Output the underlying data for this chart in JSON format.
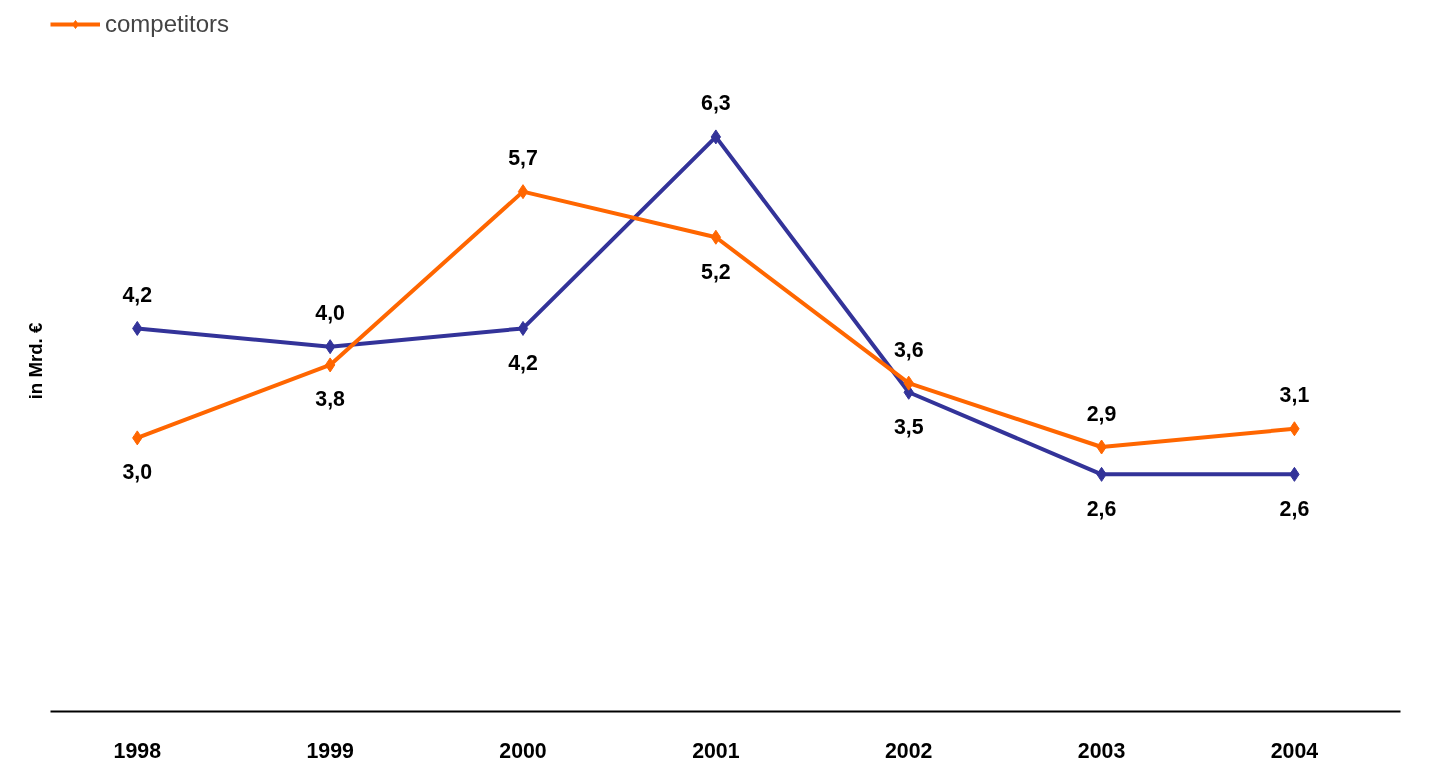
{
  "chart_data": {
    "type": "line",
    "categories": [
      "1998",
      "1999",
      "2000",
      "2001",
      "2002",
      "2003",
      "2004"
    ],
    "ylabel": "in Mrd. €",
    "relative": false,
    "tick_labels": "x",
    "grid": false,
    "legend": "top left",
    "marker": "diamond",
    "line_style": "solid",
    "series": [
      {
        "color": "#333399",
        "values": [
          4.2,
          4.0,
          4.2,
          6.3,
          3.5,
          2.6,
          2.6
        ],
        "value_labels": [
          "4,2",
          "4,0",
          "4,2",
          "6,3",
          "3,5",
          "2,6",
          "2,6"
        ]
      },
      {
        "name": "competitors",
        "color": "#ff6600",
        "values": [
          3.0,
          3.8,
          5.7,
          5.2,
          3.6,
          2.9,
          3.1
        ],
        "value_labels": [
          "3,0",
          "3,8",
          "5,7",
          "5,2",
          "3,6",
          "2,9",
          "3,1"
        ]
      }
    ]
  }
}
